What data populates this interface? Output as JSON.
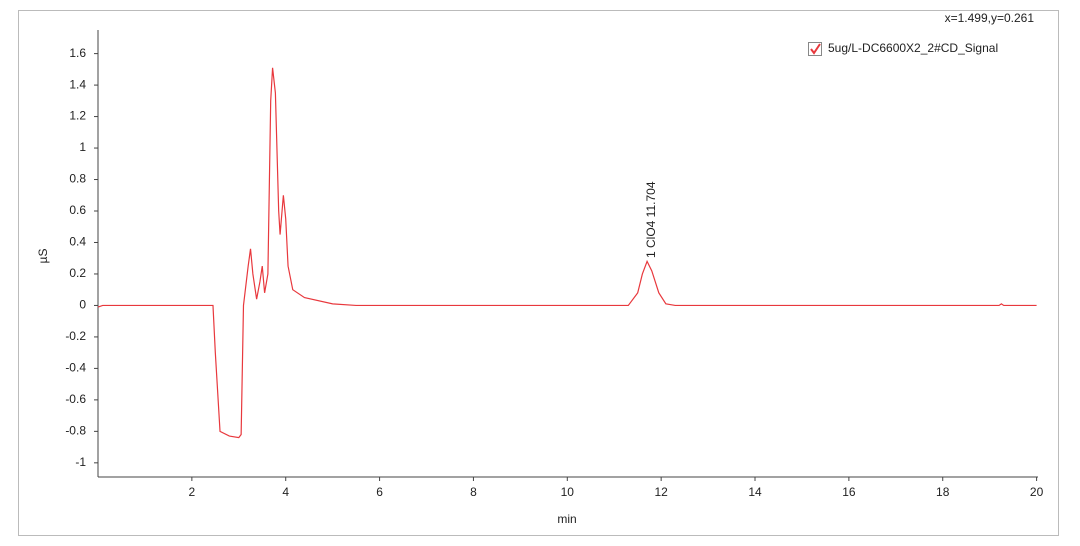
{
  "chart_data": {
    "type": "line",
    "cursor_readout": "x=1.499,y=0.261",
    "xlabel": "min",
    "ylabel": "µS",
    "annotation": "1 ClO4 11.704",
    "xlim": [
      0,
      20.03
    ],
    "ylim": [
      -1.09,
      1.75
    ],
    "xticks": [
      2,
      4,
      6,
      8,
      10,
      12,
      14,
      16,
      18,
      20
    ],
    "yticks": [
      -1,
      -0.8,
      -0.6,
      -0.4,
      -0.2,
      0,
      0.2,
      0.4,
      0.6,
      0.8,
      1,
      1.2,
      1.4,
      1.6
    ],
    "x": [
      0,
      0.1,
      2.45,
      2.5,
      2.6,
      2.8,
      3.0,
      3.05,
      3.1,
      3.2,
      3.25,
      3.3,
      3.38,
      3.45,
      3.5,
      3.55,
      3.62,
      3.68,
      3.72,
      3.78,
      3.85,
      3.88,
      3.95,
      4.0,
      4.05,
      4.15,
      4.4,
      5.0,
      5.5,
      11.3,
      11.5,
      11.6,
      11.7,
      11.8,
      11.95,
      12.1,
      12.3,
      19.2,
      19.25,
      19.3,
      20
    ],
    "series": [
      {
        "name": "5ug/L-DC6600X2_2#CD_Signal",
        "color": "#e8383d",
        "values": [
          -0.01,
          0.0,
          0.0,
          -0.3,
          -0.8,
          -0.83,
          -0.84,
          -0.82,
          0.0,
          0.25,
          0.36,
          0.2,
          0.04,
          0.15,
          0.25,
          0.08,
          0.2,
          1.3,
          1.51,
          1.35,
          0.6,
          0.45,
          0.7,
          0.55,
          0.25,
          0.1,
          0.05,
          0.01,
          0.0,
          0.0,
          0.08,
          0.2,
          0.28,
          0.22,
          0.08,
          0.01,
          0.0,
          0.0,
          0.01,
          0.0,
          0.0
        ]
      }
    ]
  }
}
